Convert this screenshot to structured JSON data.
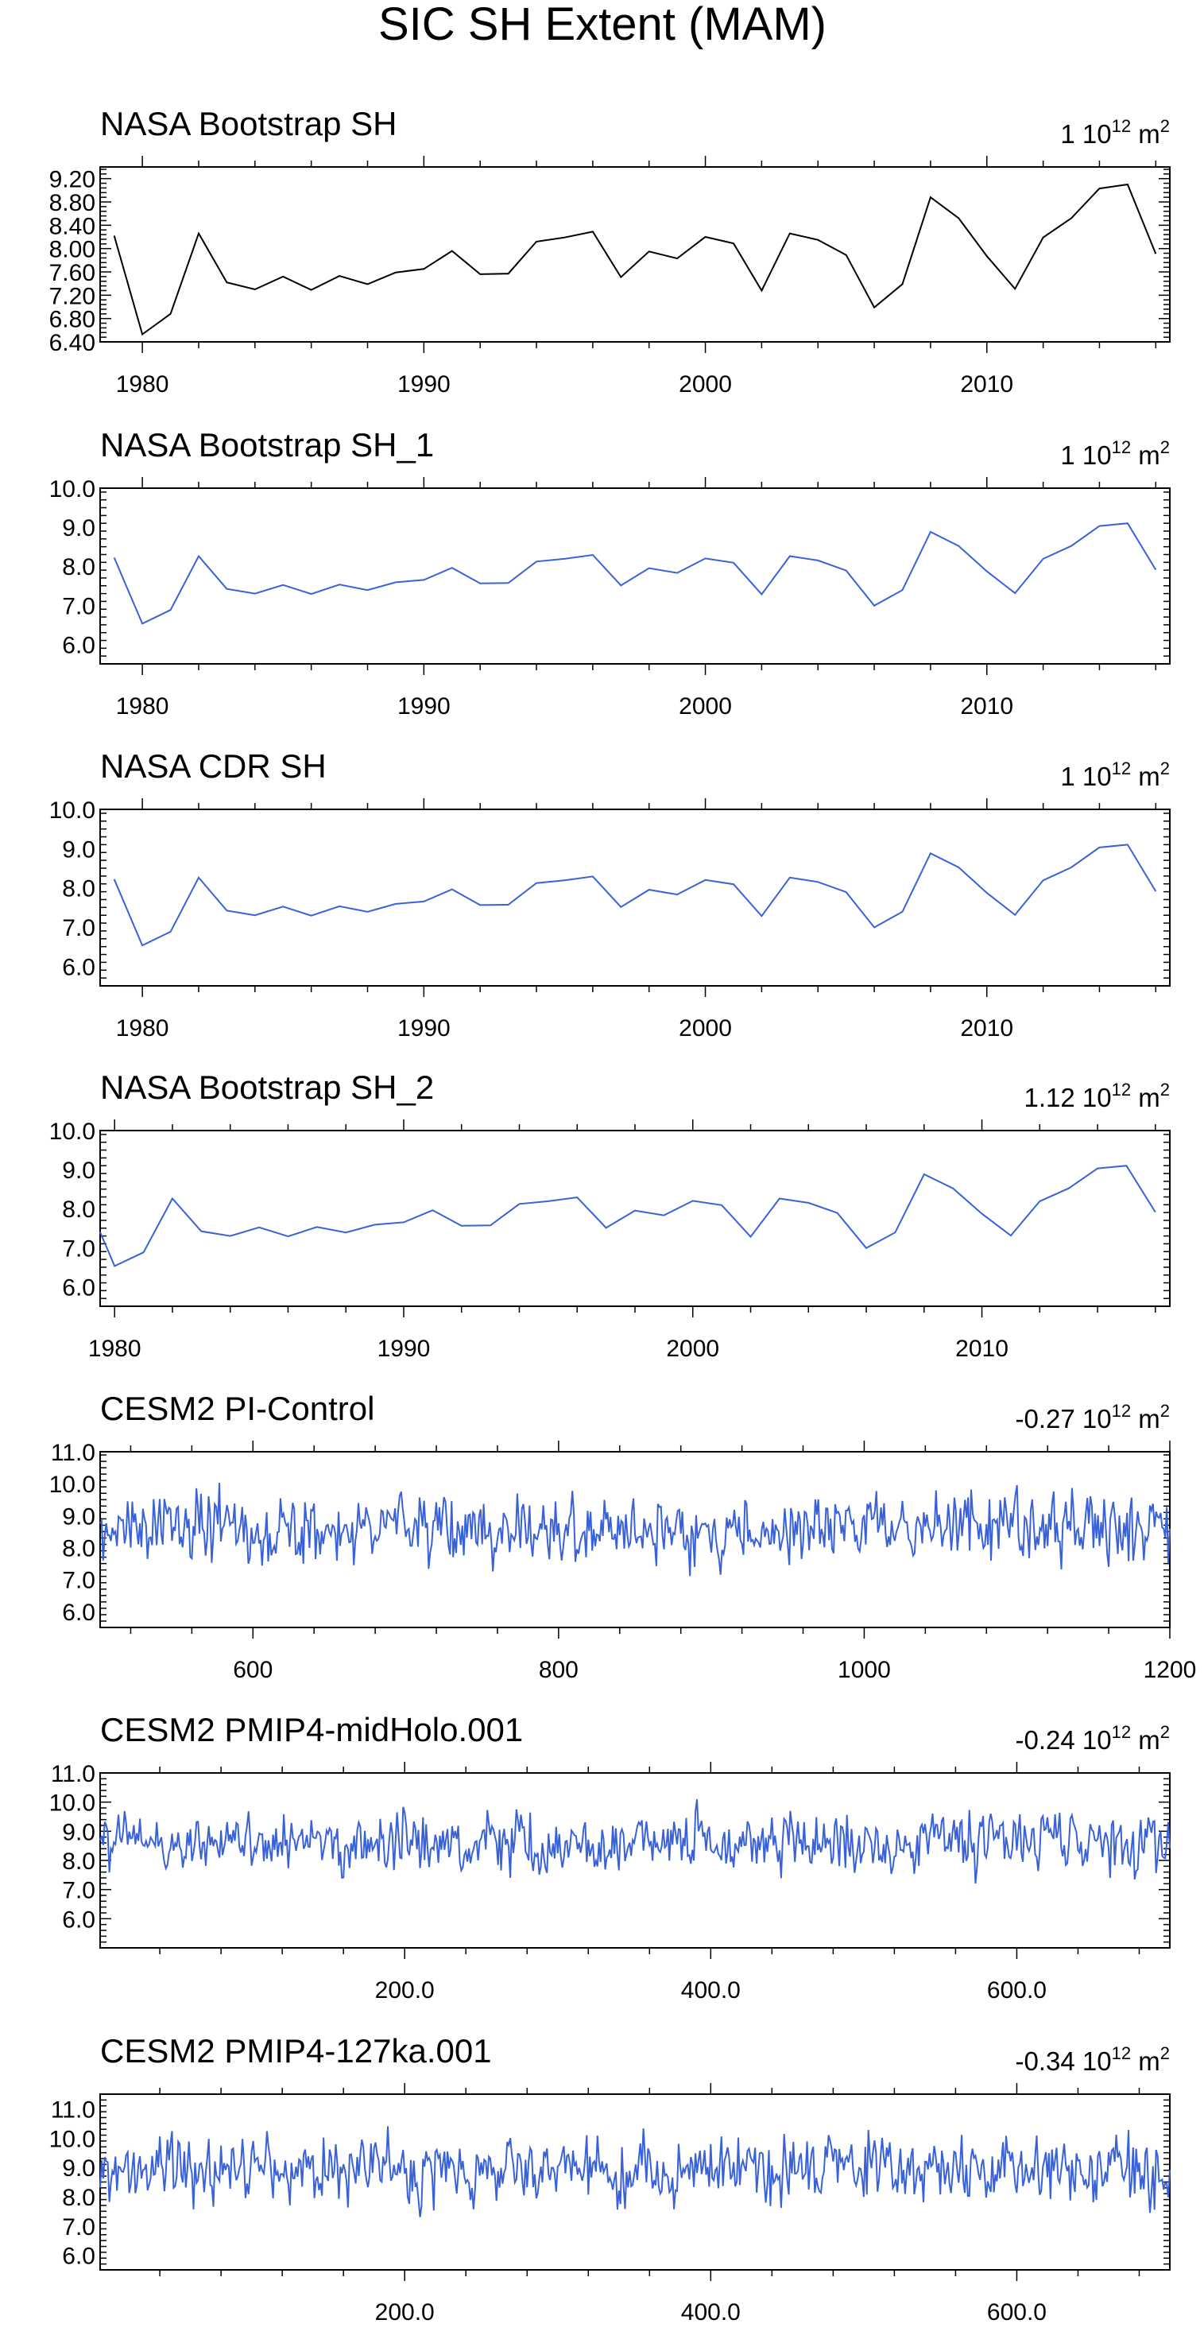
{
  "figure": {
    "title": "SIC SH Extent (MAM)"
  },
  "chart_data": [
    {
      "type": "line",
      "title": "NASA Bootstrap SH",
      "trend_value": "1",
      "trend_unit_base": "10",
      "trend_unit_exp": "12",
      "trend_unit": "m",
      "trend_unit_sup": "2",
      "color": "#000000",
      "xlim": [
        1978.5,
        2016.5
      ],
      "ylim": [
        6.4,
        9.4
      ],
      "xticks": [
        1980,
        1990,
        2000,
        2010
      ],
      "xtick_labels": [
        "1980",
        "1990",
        "2000",
        "2010"
      ],
      "yticks": [
        6.4,
        6.8,
        7.2,
        7.6,
        8.0,
        8.4,
        8.8,
        9.2
      ],
      "ytick_labels": [
        "6.40",
        "6.80",
        "7.20",
        "7.60",
        "8.00",
        "8.40",
        "8.80",
        "9.20"
      ],
      "series": [
        {
          "name": "NASA Bootstrap SH",
          "x": [
            1979,
            1980,
            1981,
            1982,
            1983,
            1984,
            1985,
            1986,
            1987,
            1988,
            1989,
            1990,
            1991,
            1992,
            1993,
            1994,
            1995,
            1996,
            1997,
            1998,
            1999,
            2000,
            2001,
            2002,
            2003,
            2004,
            2005,
            2006,
            2007,
            2008,
            2009,
            2010,
            2011,
            2012,
            2013,
            2014,
            2015,
            2016
          ],
          "values": [
            8.22,
            6.53,
            6.88,
            8.26,
            7.42,
            7.3,
            7.52,
            7.29,
            7.53,
            7.39,
            7.59,
            7.65,
            7.96,
            7.56,
            7.57,
            8.12,
            8.19,
            8.29,
            7.51,
            7.95,
            7.83,
            8.2,
            8.09,
            7.28,
            8.26,
            8.15,
            7.89,
            6.99,
            7.39,
            8.88,
            8.52,
            7.87,
            7.31,
            8.19,
            8.52,
            9.03,
            9.1,
            7.91
          ]
        }
      ]
    },
    {
      "type": "line",
      "title": "NASA Bootstrap SH_1",
      "trend_value": "1",
      "trend_unit_base": "10",
      "trend_unit_exp": "12",
      "trend_unit": "m",
      "trend_unit_sup": "2",
      "color": "#3a62d8",
      "xlim": [
        1978.5,
        2016.5
      ],
      "ylim": [
        5.5,
        10.0
      ],
      "xticks": [
        1980,
        1990,
        2000,
        2010
      ],
      "xtick_labels": [
        "1980",
        "1990",
        "2000",
        "2010"
      ],
      "yticks": [
        6.0,
        7.0,
        8.0,
        9.0,
        10.0
      ],
      "ytick_labels": [
        "6.0",
        "7.0",
        "8.0",
        "9.0",
        "10.0"
      ],
      "series": [
        {
          "name": "NASA Bootstrap SH_1",
          "x": [
            1979,
            1980,
            1981,
            1982,
            1983,
            1984,
            1985,
            1986,
            1987,
            1988,
            1989,
            1990,
            1991,
            1992,
            1993,
            1994,
            1995,
            1996,
            1997,
            1998,
            1999,
            2000,
            2001,
            2002,
            2003,
            2004,
            2005,
            2006,
            2007,
            2008,
            2009,
            2010,
            2011,
            2012,
            2013,
            2014,
            2015,
            2016
          ],
          "values": [
            8.22,
            6.53,
            6.88,
            8.26,
            7.42,
            7.3,
            7.52,
            7.29,
            7.53,
            7.39,
            7.59,
            7.65,
            7.96,
            7.56,
            7.57,
            8.12,
            8.19,
            8.29,
            7.51,
            7.95,
            7.83,
            8.2,
            8.09,
            7.28,
            8.26,
            8.15,
            7.89,
            6.99,
            7.39,
            8.88,
            8.52,
            7.87,
            7.31,
            8.19,
            8.52,
            9.03,
            9.1,
            7.91
          ]
        }
      ]
    },
    {
      "type": "line",
      "title": "NASA CDR SH",
      "trend_value": "1",
      "trend_unit_base": "10",
      "trend_unit_exp": "12",
      "trend_unit": "m",
      "trend_unit_sup": "2",
      "color": "#3a62d8",
      "xlim": [
        1978.5,
        2016.5
      ],
      "ylim": [
        5.5,
        10.0
      ],
      "xticks": [
        1980,
        1990,
        2000,
        2010
      ],
      "xtick_labels": [
        "1980",
        "1990",
        "2000",
        "2010"
      ],
      "yticks": [
        6.0,
        7.0,
        8.0,
        9.0,
        10.0
      ],
      "ytick_labels": [
        "6.0",
        "7.0",
        "8.0",
        "9.0",
        "10.0"
      ],
      "series": [
        {
          "name": "NASA CDR SH",
          "x": [
            1979,
            1980,
            1981,
            1982,
            1983,
            1984,
            1985,
            1986,
            1987,
            1988,
            1989,
            1990,
            1991,
            1992,
            1993,
            1994,
            1995,
            1996,
            1997,
            1998,
            1999,
            2000,
            2001,
            2002,
            2003,
            2004,
            2005,
            2006,
            2007,
            2008,
            2009,
            2010,
            2011,
            2012,
            2013,
            2014,
            2015,
            2016
          ],
          "values": [
            8.22,
            6.53,
            6.88,
            8.26,
            7.42,
            7.3,
            7.52,
            7.29,
            7.53,
            7.39,
            7.59,
            7.65,
            7.96,
            7.56,
            7.57,
            8.12,
            8.19,
            8.29,
            7.51,
            7.95,
            7.83,
            8.2,
            8.09,
            7.28,
            8.26,
            8.15,
            7.89,
            6.99,
            7.39,
            8.88,
            8.52,
            7.87,
            7.31,
            8.19,
            8.52,
            9.03,
            9.1,
            7.91
          ]
        }
      ]
    },
    {
      "type": "line",
      "title": "NASA Bootstrap SH_2",
      "trend_value": "1.12",
      "trend_unit_base": "10",
      "trend_unit_exp": "12",
      "trend_unit": "m",
      "trend_unit_sup": "2",
      "color": "#3a62d8",
      "xlim": [
        1979.5,
        2016.5
      ],
      "ylim": [
        5.5,
        10.0
      ],
      "xticks": [
        1980,
        1990,
        2000,
        2010
      ],
      "xtick_labels": [
        "1980",
        "1990",
        "2000",
        "2010"
      ],
      "yticks": [
        6.0,
        7.0,
        8.0,
        9.0,
        10.0
      ],
      "ytick_labels": [
        "6.0",
        "7.0",
        "8.0",
        "9.0",
        "10.0"
      ],
      "series": [
        {
          "name": "NASA Bootstrap SH_2",
          "x": [
            1979.5,
            1980,
            1981,
            1982,
            1983,
            1984,
            1985,
            1986,
            1987,
            1988,
            1989,
            1990,
            1991,
            1992,
            1993,
            1994,
            1995,
            1996,
            1997,
            1998,
            1999,
            2000,
            2001,
            2002,
            2003,
            2004,
            2005,
            2006,
            2007,
            2008,
            2009,
            2010,
            2011,
            2012,
            2013,
            2014,
            2015,
            2016
          ],
          "values": [
            7.4,
            6.53,
            6.88,
            8.26,
            7.42,
            7.3,
            7.52,
            7.29,
            7.53,
            7.39,
            7.59,
            7.65,
            7.96,
            7.56,
            7.57,
            8.12,
            8.19,
            8.29,
            7.51,
            7.95,
            7.83,
            8.2,
            8.09,
            7.28,
            8.26,
            8.15,
            7.89,
            6.99,
            7.39,
            8.88,
            8.52,
            7.87,
            7.31,
            8.19,
            8.52,
            9.03,
            9.1,
            7.91
          ]
        }
      ]
    },
    {
      "type": "line",
      "title": "CESM2 PI-Control",
      "trend_value": "-0.27",
      "trend_unit_base": "10",
      "trend_unit_exp": "12",
      "trend_unit": "m",
      "trend_unit_sup": "2",
      "color": "#3a62d8",
      "xlim": [
        500,
        1200
      ],
      "ylim": [
        5.5,
        11.0
      ],
      "xticks": [
        600,
        800,
        1000,
        1200
      ],
      "xtick_labels": [
        "600",
        "800",
        "1000",
        "1200"
      ],
      "yticks": [
        6.0,
        7.0,
        8.0,
        9.0,
        10.0,
        11.0
      ],
      "ytick_labels": [
        "6.0",
        "7.0",
        "8.0",
        "9.0",
        "10.0",
        "11.0"
      ],
      "series": [
        {
          "name": "CESM2 PI-Control",
          "generator": {
            "seed": 4127,
            "start": 500,
            "end": 1200,
            "step": 1,
            "mean": 8.6,
            "sd": 0.55,
            "ar": 0.2,
            "min": 6.9,
            "max": 10.1
          }
        }
      ]
    },
    {
      "type": "line",
      "title": "CESM2 PMIP4-midHolo.001",
      "trend_value": "-0.24",
      "trend_unit_base": "10",
      "trend_unit_exp": "12",
      "trend_unit": "m",
      "trend_unit_sup": "2",
      "color": "#3a62d8",
      "xlim": [
        1,
        700
      ],
      "ylim": [
        5.0,
        11.0
      ],
      "xticks": [
        200,
        400,
        600
      ],
      "xtick_labels": [
        "200.0",
        "400.0",
        "600.0"
      ],
      "yticks": [
        6.0,
        7.0,
        8.0,
        9.0,
        10.0,
        11.0
      ],
      "ytick_labels": [
        "6.0",
        "7.0",
        "8.0",
        "9.0",
        "10.0",
        "11.0"
      ],
      "series": [
        {
          "name": "CESM2 PMIP4-midHolo.001",
          "generator": {
            "seed": 9031,
            "start": 1,
            "end": 700,
            "step": 1,
            "mean": 8.6,
            "sd": 0.5,
            "ar": 0.2,
            "min": 6.2,
            "max": 10.2
          }
        }
      ]
    },
    {
      "type": "line",
      "title": "CESM2 PMIP4-127ka.001",
      "trend_value": "-0.34",
      "trend_unit_base": "10",
      "trend_unit_exp": "12",
      "trend_unit": "m",
      "trend_unit_sup": "2",
      "color": "#3a62d8",
      "xlim": [
        1,
        700
      ],
      "ylim": [
        5.5,
        11.5
      ],
      "xticks": [
        200,
        400,
        600
      ],
      "xtick_labels": [
        "200.0",
        "400.0",
        "600.0"
      ],
      "yticks": [
        6.0,
        7.0,
        8.0,
        9.0,
        10.0,
        11.0
      ],
      "ytick_labels": [
        "6.0",
        "7.0",
        "8.0",
        "9.0",
        "10.0",
        "11.0"
      ],
      "series": [
        {
          "name": "CESM2 PMIP4-127ka.001",
          "generator": {
            "seed": 2213,
            "start": 1,
            "end": 700,
            "step": 1,
            "mean": 8.9,
            "sd": 0.55,
            "ar": 0.2,
            "min": 6.9,
            "max": 10.5
          }
        }
      ]
    }
  ]
}
